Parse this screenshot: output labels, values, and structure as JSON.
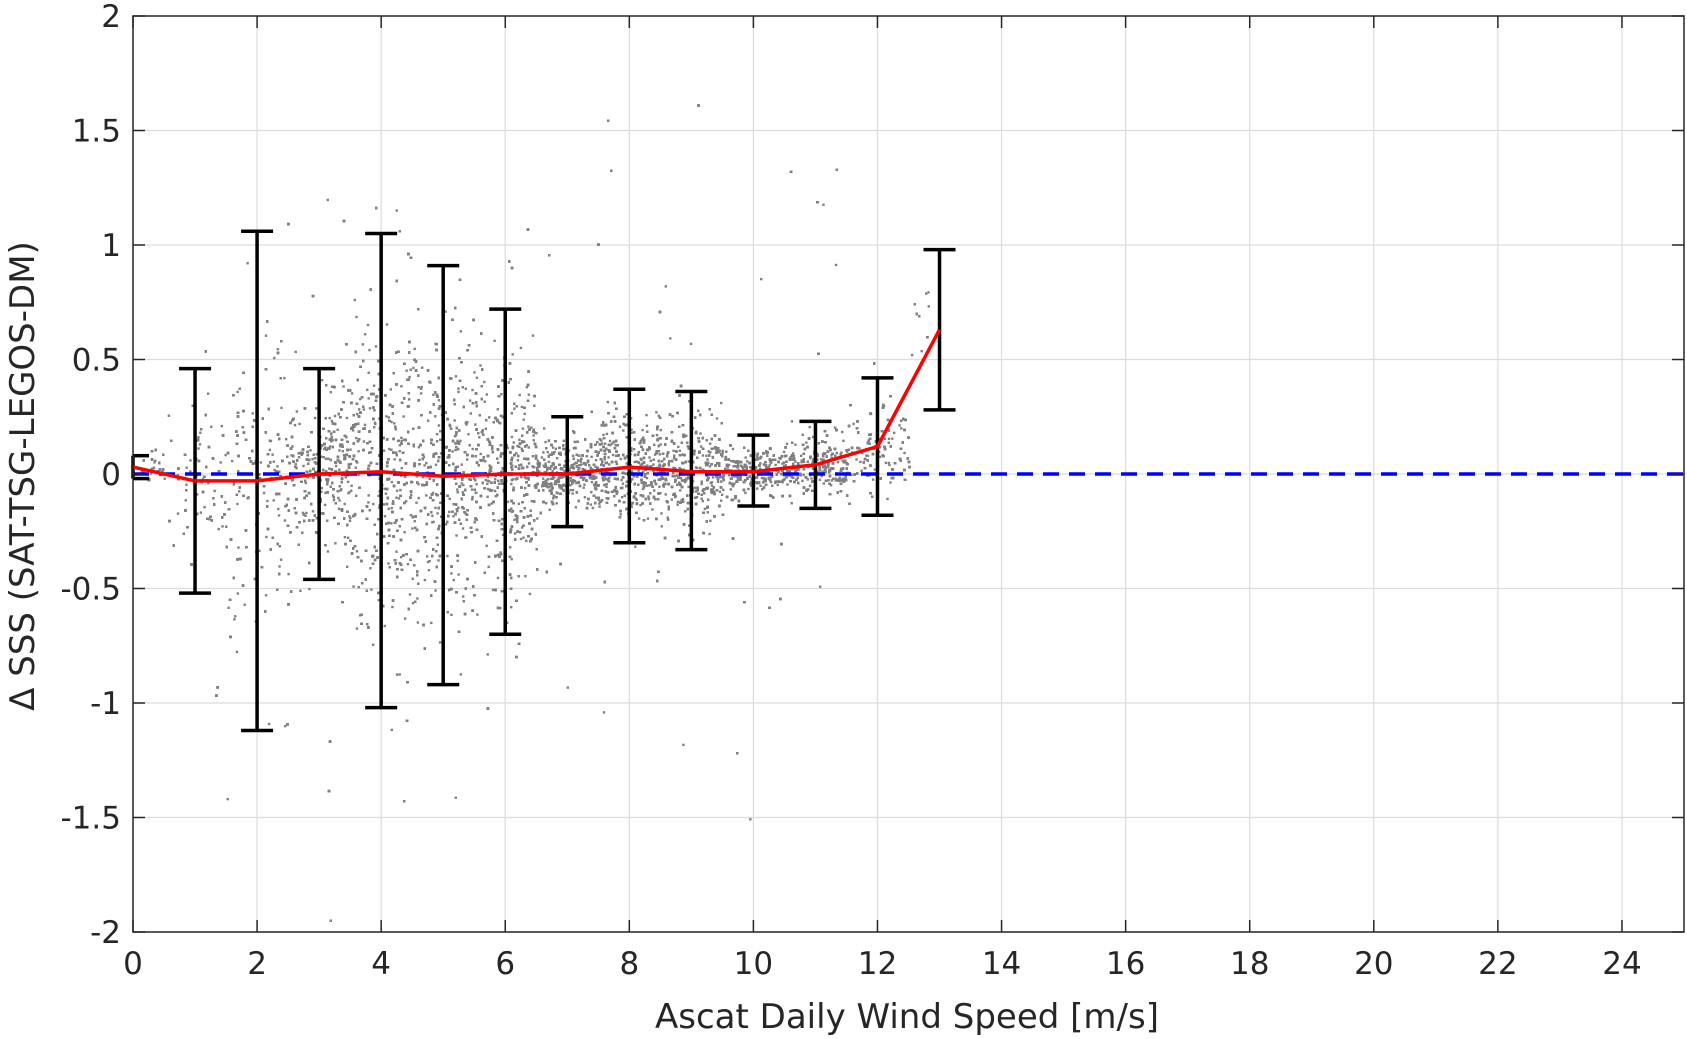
{
  "chart_data": {
    "type": "scatter",
    "title": "",
    "xlabel": "Ascat Daily Wind Speed [m/s]",
    "ylabel": "Δ SSS (SAT-TSG-LEGOS-DM)",
    "xlim": [
      0,
      25
    ],
    "ylim": [
      -2,
      2
    ],
    "xticks": [
      0,
      2,
      4,
      6,
      8,
      10,
      12,
      14,
      16,
      18,
      20,
      22,
      24
    ],
    "xtick_labels": [
      "0",
      "2",
      "4",
      "6",
      "8",
      "10",
      "12",
      "14",
      "16",
      "18",
      "20",
      "22",
      "24"
    ],
    "yticks": [
      2,
      1.5,
      1,
      0.5,
      0,
      -0.5,
      -1,
      -1.5,
      -2
    ],
    "ytick_labels": [
      "2",
      "1.5",
      "1",
      "0.5",
      "0",
      "-0.5",
      "-1",
      "-1.5",
      "-2"
    ],
    "grid": true,
    "legend": "none",
    "scatter": {
      "color": "#808080",
      "description_x_range": [
        0,
        13
      ],
      "description_y_range": [
        -2,
        2
      ]
    },
    "mean_line": {
      "color": "#ff0000",
      "x": [
        0,
        1,
        2,
        3,
        4,
        5,
        6,
        7,
        8,
        9,
        10,
        11,
        12,
        13
      ],
      "y": [
        0.03,
        -0.03,
        -0.03,
        0.0,
        0.01,
        -0.01,
        0.0,
        0.0,
        0.03,
        0.01,
        0.01,
        0.04,
        0.12,
        0.63
      ]
    },
    "error_bars": {
      "color": "#000000",
      "x": [
        0,
        1,
        2,
        3,
        4,
        5,
        6,
        7,
        8,
        9,
        10,
        11,
        12,
        13
      ],
      "upper": [
        0.08,
        0.46,
        1.06,
        0.46,
        1.05,
        0.91,
        0.72,
        0.25,
        0.37,
        0.36,
        0.17,
        0.23,
        0.42,
        0.98
      ],
      "lower": [
        -0.02,
        -0.52,
        -1.12,
        -0.46,
        -1.02,
        -0.92,
        -0.7,
        -0.23,
        -0.3,
        -0.33,
        -0.14,
        -0.15,
        -0.18,
        0.28
      ]
    },
    "reference_line": {
      "color": "#0000ff",
      "style": "dashed",
      "y": 0
    }
  }
}
